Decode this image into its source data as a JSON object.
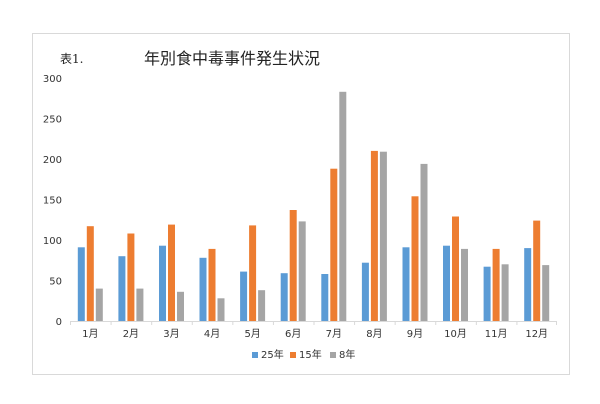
{
  "chart_data": {
    "type": "bar",
    "table_label": "表1.",
    "title": "年別食中毒事件発生状況",
    "categories": [
      "1月",
      "2月",
      "3月",
      "4月",
      "5月",
      "6月",
      "7月",
      "8月",
      "9月",
      "10月",
      "11月",
      "12月"
    ],
    "series": [
      {
        "name": "25年",
        "color": "#5b9bd5",
        "values": [
          91,
          80,
          93,
          78,
          61,
          59,
          58,
          72,
          91,
          93,
          67,
          90
        ]
      },
      {
        "name": "15年",
        "color": "#ed7d31",
        "values": [
          117,
          108,
          119,
          89,
          118,
          137,
          188,
          210,
          154,
          129,
          89,
          124
        ]
      },
      {
        "name": "8年",
        "color": "#a5a5a5",
        "values": [
          40,
          40,
          36,
          28,
          38,
          123,
          283,
          209,
          194,
          89,
          70,
          69
        ]
      }
    ],
    "y_ticks": [
      "0",
      "50",
      "100",
      "150",
      "200",
      "250",
      "300"
    ],
    "ylim": [
      0,
      300
    ],
    "grid": false,
    "legend_position": "bottom"
  }
}
